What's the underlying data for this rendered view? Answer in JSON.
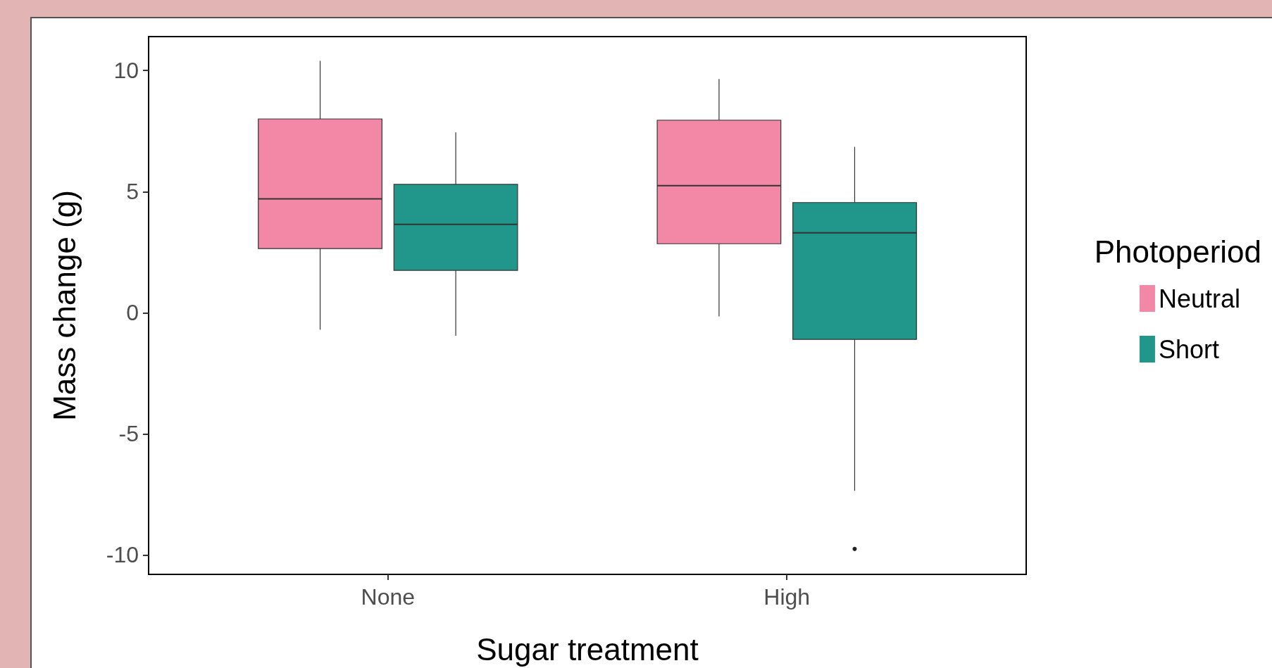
{
  "chart_data": {
    "type": "box",
    "xlabel": "Sugar treatment",
    "ylabel": "Mass change (g)",
    "legend_title": "Photoperiod",
    "legend": "right",
    "grid": false,
    "categories": [
      "None",
      "High"
    ],
    "ylim": [
      -10.8,
      11.4
    ],
    "yticks": [
      -10,
      -5,
      0,
      5,
      10
    ],
    "series": [
      {
        "name": "Neutral",
        "color": "#f288a6",
        "boxes": [
          {
            "low": -0.7,
            "q1": 2.65,
            "median": 4.7,
            "q3": 8.0,
            "high": 10.4
          },
          {
            "low": -0.15,
            "q1": 2.85,
            "median": 5.25,
            "q3": 7.95,
            "high": 9.65
          }
        ]
      },
      {
        "name": "Short",
        "color": "#21968a",
        "boxes": [
          {
            "low": -0.95,
            "q1": 1.75,
            "median": 3.65,
            "q3": 5.3,
            "high": 7.45
          },
          {
            "low": -7.35,
            "q1": -1.1,
            "median": 3.3,
            "q3": 4.55,
            "high": 6.85,
            "outliers": [
              -9.75
            ]
          }
        ]
      }
    ]
  }
}
